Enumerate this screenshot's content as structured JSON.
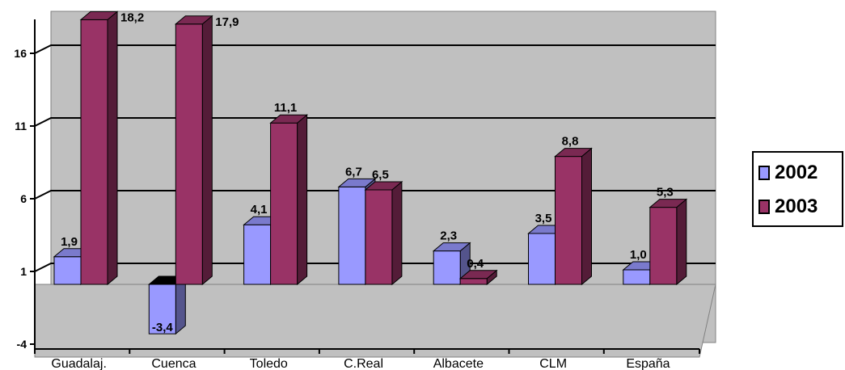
{
  "chart_data": {
    "type": "bar",
    "categories": [
      "Guadalaj.",
      "Cuenca",
      "Toledo",
      "C.Real",
      "Albacete",
      "CLM",
      "España"
    ],
    "series": [
      {
        "name": "2002",
        "values": [
          1.9,
          -3.4,
          4.1,
          6.7,
          2.3,
          3.5,
          1.0
        ],
        "labels": [
          "1,9",
          "-3,4",
          "4,1",
          "6,7",
          "2,3",
          "3,5",
          "1,0"
        ],
        "color": "#9999ff"
      },
      {
        "name": "2003",
        "values": [
          18.2,
          17.9,
          11.1,
          6.5,
          0.4,
          8.8,
          5.3
        ],
        "labels": [
          "18,2",
          "17,9",
          "11,1",
          "6,5",
          "0,4",
          "8,8",
          "5,3"
        ],
        "color": "#993366"
      }
    ],
    "yticks": [
      "-4",
      "1",
      "6",
      "11",
      "16"
    ],
    "ylim": [
      -4,
      18.2
    ],
    "three_d": true,
    "grid": true,
    "background": "#c0c0c0",
    "legend_position": "right"
  }
}
